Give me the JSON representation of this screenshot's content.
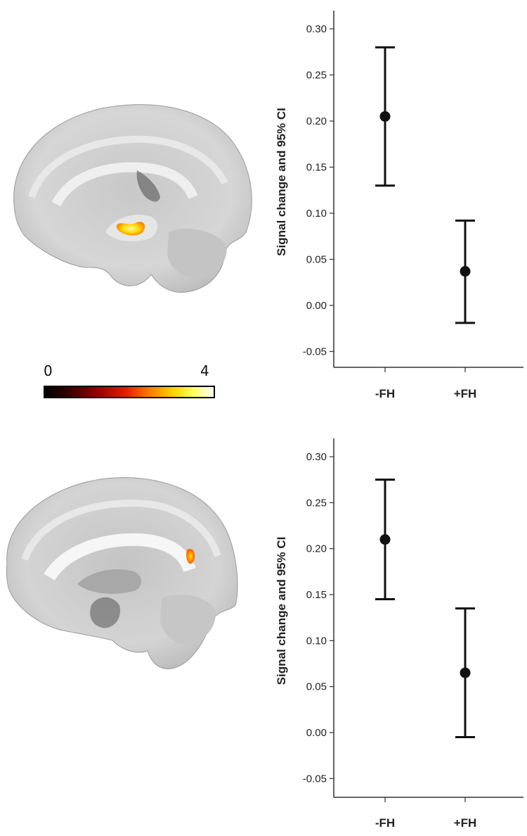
{
  "colorbar": {
    "min_label": "0",
    "max_label": "4",
    "colormap": "hot"
  },
  "chart_data": [
    {
      "type": "scatter",
      "title": "",
      "xlabel": "",
      "ylabel": "Signal change and 95% CI",
      "categories": [
        "-FH",
        "+FH"
      ],
      "ylim": [
        -0.07,
        0.32
      ],
      "yticks": [
        "0.30",
        "0.25",
        "0.20",
        "0.15",
        "0.10",
        "0.05",
        "0.00",
        "-0.05"
      ],
      "series": [
        {
          "values": [
            0.205,
            0.037
          ],
          "ci_low": [
            0.13,
            -0.019
          ],
          "ci_high": [
            0.28,
            0.092
          ]
        }
      ]
    },
    {
      "type": "scatter",
      "title": "",
      "xlabel": "",
      "ylabel": "Signal change and 95% CI",
      "categories": [
        "-FH",
        "+FH"
      ],
      "ylim": [
        -0.07,
        0.32
      ],
      "yticks": [
        "0.30",
        "0.25",
        "0.20",
        "0.15",
        "0.10",
        "0.05",
        "0.00",
        "-0.05"
      ],
      "series": [
        {
          "values": [
            0.21,
            0.065
          ],
          "ci_low": [
            0.145,
            -0.005
          ],
          "ci_high": [
            0.275,
            0.135
          ]
        }
      ]
    }
  ]
}
